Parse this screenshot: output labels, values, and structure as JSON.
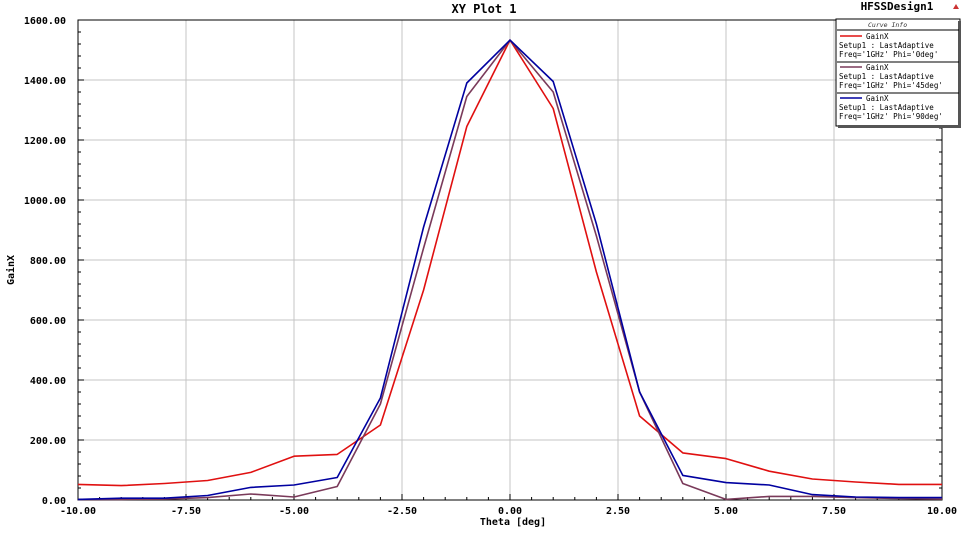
{
  "design_name": "HFSSDesign1",
  "legend": {
    "title": "Curve Info",
    "entries": [
      {
        "name": "GainX",
        "line1": "Setup1 : LastAdaptive",
        "line2": "Freq='1GHz' Phi='0deg'"
      },
      {
        "name": "GainX",
        "line1": "Setup1 : LastAdaptive",
        "line2": "Freq='1GHz' Phi='45deg'"
      },
      {
        "name": "GainX",
        "line1": "Setup1 : LastAdaptive",
        "line2": "Freq='1GHz' Phi='90deg'"
      }
    ]
  },
  "chart_data": {
    "type": "line",
    "title": "XY Plot 1",
    "xlabel": "Theta [deg]",
    "ylabel": "GainX",
    "xlim": [
      -10,
      10
    ],
    "ylim": [
      0,
      1600
    ],
    "x_ticks": [
      "-10.00",
      "-7.50",
      "-5.00",
      "-2.50",
      "0.00",
      "2.50",
      "5.00",
      "7.50",
      "10.00"
    ],
    "y_ticks": [
      "0.00",
      "200.00",
      "400.00",
      "600.00",
      "800.00",
      "1000.00",
      "1200.00",
      "1400.00",
      "1600.00"
    ],
    "grid": true,
    "legend_position": "top-right",
    "x": [
      -10,
      -9,
      -8,
      -7,
      -6,
      -5,
      -4,
      -3,
      -2,
      -1,
      0,
      1,
      2,
      3,
      4,
      5,
      6,
      7,
      8,
      9,
      10
    ],
    "series": [
      {
        "color": "#e01010",
        "values": [
          52,
          48,
          55,
          65,
          92,
          146,
          152,
          250,
          700,
          1245,
          1533,
          1305,
          760,
          280,
          157,
          138,
          96,
          70,
          60,
          52,
          52
        ]
      },
      {
        "color": "#7a3a5a",
        "values": [
          2,
          2,
          3,
          8,
          20,
          10,
          45,
          320,
          840,
          1345,
          1533,
          1360,
          880,
          360,
          55,
          2,
          12,
          12,
          8,
          5,
          3
        ]
      },
      {
        "color": "#0000a0",
        "values": [
          2,
          6,
          6,
          15,
          42,
          50,
          75,
          340,
          910,
          1390,
          1533,
          1395,
          920,
          360,
          82,
          58,
          50,
          18,
          10,
          8,
          8
        ]
      }
    ]
  }
}
